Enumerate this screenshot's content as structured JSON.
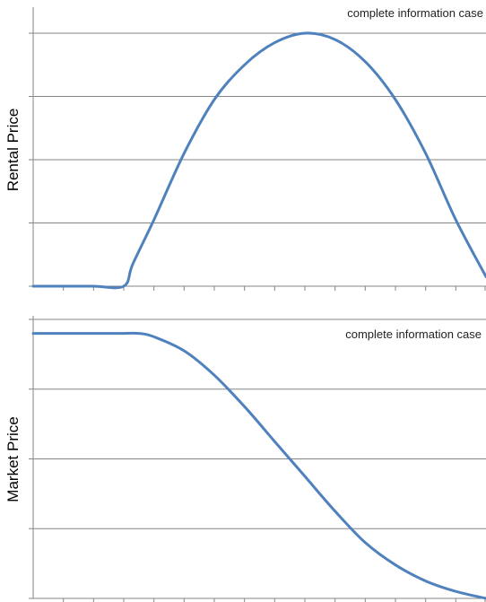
{
  "colors": {
    "line": "#4F81BD",
    "grid": "#868686",
    "axis": "#868686",
    "text": "#000000"
  },
  "chart_data": [
    {
      "type": "line",
      "title": "",
      "annotation": "complete information case",
      "xlabel": "",
      "ylabel": "Rental Price",
      "grid": true,
      "x_ticks": 15,
      "y_gridlines": 4,
      "xlim": [
        0,
        15
      ],
      "ylim": [
        0,
        4
      ],
      "series": [
        {
          "x": [
            0,
            1,
            2,
            3,
            3.3,
            4,
            5,
            6,
            7,
            8,
            9,
            10,
            11,
            12,
            13,
            14,
            15
          ],
          "values": [
            0,
            0,
            0,
            0,
            0.35,
            1.05,
            2.1,
            2.95,
            3.5,
            3.85,
            4.0,
            3.9,
            3.55,
            2.95,
            2.1,
            1.05,
            0.15
          ]
        }
      ]
    },
    {
      "type": "line",
      "title": "",
      "annotation": "complete information case",
      "xlabel": "",
      "ylabel": "Market Price",
      "grid": true,
      "x_ticks": 15,
      "y_gridlines": 4,
      "xlim": [
        0,
        15
      ],
      "ylim": [
        0,
        4
      ],
      "series": [
        {
          "x": [
            0,
            1,
            2,
            3,
            3.5,
            4,
            5,
            6,
            7,
            8,
            9,
            10,
            11,
            12,
            13,
            14,
            15
          ],
          "values": [
            3.8,
            3.8,
            3.8,
            3.8,
            3.8,
            3.75,
            3.55,
            3.2,
            2.75,
            2.25,
            1.75,
            1.25,
            0.8,
            0.48,
            0.25,
            0.1,
            0
          ]
        }
      ]
    }
  ]
}
